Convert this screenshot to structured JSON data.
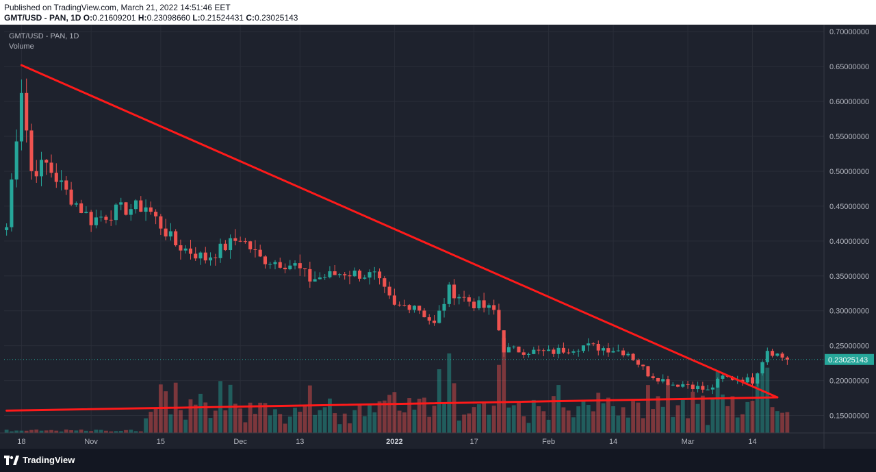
{
  "header": {
    "published": "Published on TradingView.com, March 21, 2022 14:51:46 EET",
    "symbol": "GMT/USD - PAN, 1D",
    "o_label": "O:",
    "o_value": "0.21609201",
    "h_label": "H:",
    "h_value": "0.23098660",
    "l_label": "L:",
    "l_value": "0.21524431",
    "c_label": "C:",
    "c_value": "0.23025143"
  },
  "legend": {
    "title": "GMT/USD - PAN, 1D",
    "volume_label": "Volume"
  },
  "footer": {
    "brand": "TradingView"
  },
  "colors": {
    "background": "#1e222d",
    "up": "#26a69a",
    "down": "#ef5350",
    "trendline": "#ff1a1a",
    "grid": "#2a2e39",
    "axis_text": "#b2b5be",
    "price_badge": "#26a69a"
  },
  "chart_data": {
    "type": "candlestick",
    "symbol": "GMT/USD",
    "exchange": "PAN",
    "interval": "1D",
    "last_price": "0.23025143",
    "ylim": [
      0.125,
      0.71
    ],
    "y_ticks": [
      "0.70000000",
      "0.65000000",
      "0.60000000",
      "0.55000000",
      "0.50000000",
      "0.45000000",
      "0.40000000",
      "0.35000000",
      "0.30000000",
      "0.25000000",
      "0.20000000",
      "0.15000000"
    ],
    "y_tick_values": [
      0.7,
      0.65,
      0.6,
      0.55,
      0.5,
      0.45,
      0.4,
      0.35,
      0.3,
      0.25,
      0.2,
      0.15
    ],
    "x_start": "2021-10-15",
    "x_end": "2022-03-21",
    "x_ticks": [
      {
        "label": "18",
        "date": "2021-10-18",
        "bold": false
      },
      {
        "label": "Nov",
        "date": "2021-11-01",
        "bold": false
      },
      {
        "label": "15",
        "date": "2021-11-15",
        "bold": false
      },
      {
        "label": "Dec",
        "date": "2021-12-01",
        "bold": false
      },
      {
        "label": "13",
        "date": "2021-12-13",
        "bold": false
      },
      {
        "label": "2022",
        "date": "2022-01-01",
        "bold": true
      },
      {
        "label": "17",
        "date": "2022-01-17",
        "bold": false
      },
      {
        "label": "Feb",
        "date": "2022-02-01",
        "bold": false
      },
      {
        "label": "14",
        "date": "2022-02-14",
        "bold": false
      },
      {
        "label": "Mar",
        "date": "2022-03-01",
        "bold": false
      },
      {
        "label": "14",
        "date": "2022-03-14",
        "bold": false
      }
    ],
    "anchors": [
      {
        "date": "2021-10-15",
        "close": 0.42
      },
      {
        "date": "2021-10-18",
        "close": 0.62
      },
      {
        "date": "2021-10-20",
        "close": 0.5
      },
      {
        "date": "2021-10-23",
        "close": 0.51
      },
      {
        "date": "2021-10-27",
        "close": 0.47
      },
      {
        "date": "2021-11-01",
        "close": 0.43
      },
      {
        "date": "2021-11-07",
        "close": 0.445
      },
      {
        "date": "2021-11-12",
        "close": 0.45
      },
      {
        "date": "2021-11-18",
        "close": 0.395
      },
      {
        "date": "2021-11-24",
        "close": 0.375
      },
      {
        "date": "2021-12-01",
        "close": 0.405
      },
      {
        "date": "2021-12-05",
        "close": 0.375
      },
      {
        "date": "2021-12-12",
        "close": 0.365
      },
      {
        "date": "2021-12-15",
        "close": 0.345
      },
      {
        "date": "2021-12-22",
        "close": 0.355
      },
      {
        "date": "2021-12-28",
        "close": 0.35
      },
      {
        "date": "2022-01-01",
        "close": 0.305
      },
      {
        "date": "2022-01-05",
        "close": 0.31
      },
      {
        "date": "2022-01-09",
        "close": 0.28
      },
      {
        "date": "2022-01-12",
        "close": 0.33
      },
      {
        "date": "2022-01-17",
        "close": 0.31
      },
      {
        "date": "2022-01-21",
        "close": 0.3
      },
      {
        "date": "2022-01-23",
        "close": 0.245
      },
      {
        "date": "2022-02-01",
        "close": 0.24
      },
      {
        "date": "2022-02-08",
        "close": 0.25
      },
      {
        "date": "2022-02-14",
        "close": 0.245
      },
      {
        "date": "2022-02-17",
        "close": 0.24
      },
      {
        "date": "2022-02-21",
        "close": 0.21
      },
      {
        "date": "2022-02-26",
        "close": 0.195
      },
      {
        "date": "2022-03-01",
        "close": 0.195
      },
      {
        "date": "2022-03-05",
        "close": 0.185
      },
      {
        "date": "2022-03-08",
        "close": 0.205
      },
      {
        "date": "2022-03-14",
        "close": 0.2
      },
      {
        "date": "2022-03-17",
        "close": 0.245
      },
      {
        "date": "2022-03-21",
        "close": 0.23
      }
    ],
    "trendlines": [
      {
        "name": "resistance",
        "from": {
          "date": "2021-10-18",
          "price": 0.652
        },
        "to": {
          "date": "2022-03-19",
          "price": 0.176
        }
      },
      {
        "name": "support",
        "from": {
          "date": "2021-10-15",
          "price": 0.157
        },
        "to": {
          "date": "2022-03-19",
          "price": 0.176
        }
      }
    ]
  }
}
